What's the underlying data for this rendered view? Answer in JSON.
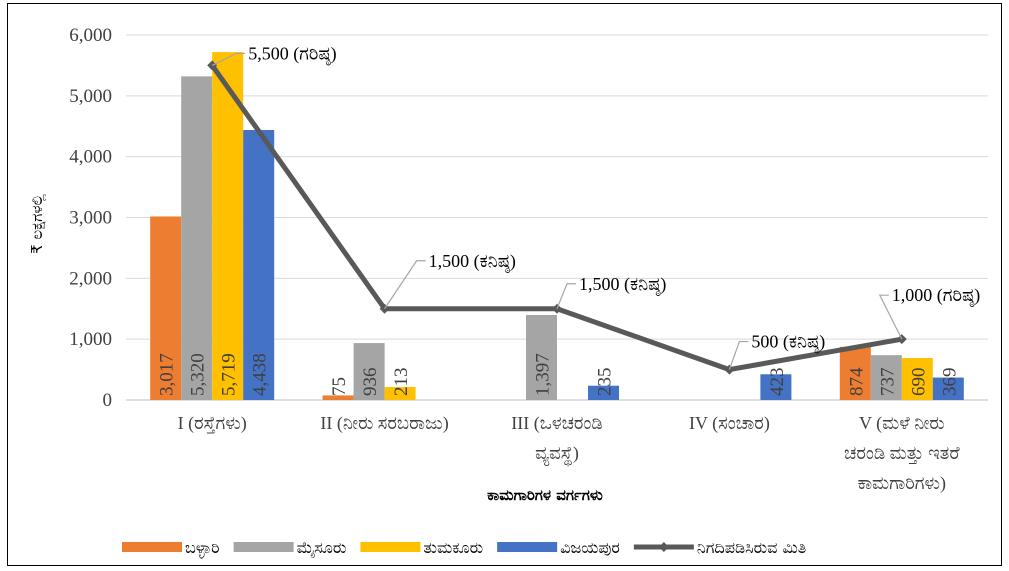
{
  "chart_data": {
    "type": "bar",
    "xlabel": "ಕಾಮಗಾರಿಗಳ ವರ್ಗಗಳು",
    "ylabel": "₹ ಲಕ್ಷಗಳಲ್ಲಿ",
    "ylim": [
      0,
      6000
    ],
    "yticks": [
      "0",
      "1,000",
      "2,000",
      "3,000",
      "4,000",
      "5,000",
      "6,000"
    ],
    "grid": true,
    "legend_position": "bottom",
    "categories": [
      [
        "I (ರಸ್ತೆಗಳು)"
      ],
      [
        "II (ನೀರು ಸರಬರಾಜು)"
      ],
      [
        "III (ಒಳಚರಂಡಿ",
        "ವ್ಯವಸ್ಥೆ)"
      ],
      [
        "IV (ಸಂಚಾರ)"
      ],
      [
        "V (ಮಳೆ ನೀರು",
        "ಚರಂಡಿ ಮತ್ತು ಇತರೆ",
        "ಕಾಮಗಾರಿಗಳು)"
      ]
    ],
    "series": [
      {
        "name": "ಬಳ್ಳಾರಿ",
        "color": "#ED7D31",
        "values": [
          3017,
          75,
          null,
          null,
          874
        ],
        "labels": [
          "3,017",
          "75",
          "",
          "",
          "874"
        ]
      },
      {
        "name": "ಮೈಸೂರು",
        "color": "#A5A5A5",
        "values": [
          5320,
          936,
          1397,
          null,
          737
        ],
        "labels": [
          "5,320",
          "936",
          "1,397",
          "",
          "737"
        ]
      },
      {
        "name": "ತುಮಕೂರು",
        "color": "#FFC000",
        "values": [
          5719,
          213,
          null,
          null,
          690
        ],
        "labels": [
          "5,719",
          "213",
          "",
          "",
          "690"
        ]
      },
      {
        "name": "ವಿಜಯಪುರ",
        "color": "#4472C4",
        "values": [
          4438,
          null,
          235,
          423,
          369
        ],
        "labels": [
          "4,438",
          "",
          "235",
          "423",
          "369"
        ]
      }
    ],
    "line": {
      "name": "ನಿಗದಿಪಡಿಸಿರುವ ಮಿತಿ",
      "color": "#595959",
      "values": [
        5500,
        1500,
        1500,
        500,
        1000
      ],
      "annotations": [
        "5,500 (ಗರಿಷ್ಠ)",
        "1,500 (ಕನಿಷ್ಠ)",
        "1,500 (ಕನಿಷ್ಠ)",
        "500 (ಕನಿಷ್ಠ)",
        "1,000 (ಗರಿಷ್ಠ)"
      ]
    }
  }
}
